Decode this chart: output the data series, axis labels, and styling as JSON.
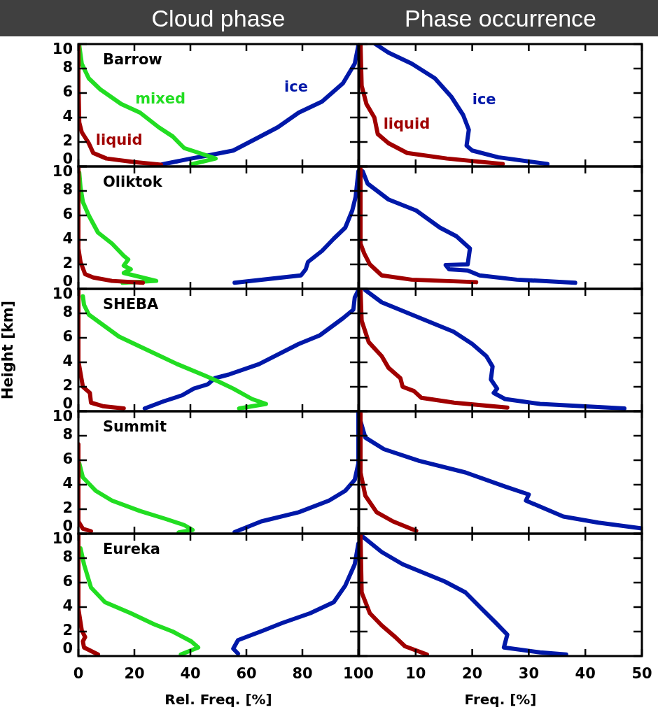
{
  "chart_data": [
    {
      "type": "line",
      "title": "Cloud phase",
      "annotations": [
        "Barrow"
      ],
      "marker": "none",
      "xlim": [
        0,
        100
      ],
      "xticks": [
        0,
        20,
        40,
        60,
        80,
        100
      ],
      "ylim": [
        0,
        10
      ],
      "yticks": [
        0,
        2,
        4,
        6,
        8,
        10
      ],
      "tick_labels": "y",
      "series": [
        {
          "name": "liquid",
          "color": "#a00000",
          "x": [
            29.5,
            20,
            10,
            5.3,
            3.7,
            1.2,
            0.3,
            0.1,
            0
          ],
          "values": [
            0.15,
            0.36,
            0.65,
            1.1,
            1.9,
            2.8,
            3.6,
            6,
            10
          ]
        },
        {
          "name": "mixed",
          "color": "#22dd22",
          "x": [
            40.3,
            49,
            44.5,
            37.8,
            33.7,
            28.7,
            22,
            15.3,
            7.8,
            3.7,
            1.2,
            0.3
          ],
          "values": [
            0.17,
            0.65,
            1.0,
            1.5,
            2.45,
            3.2,
            4.4,
            5.1,
            6.3,
            7.2,
            8.4,
            9.9
          ]
        },
        {
          "name": "ice",
          "color": "#0018a8",
          "x": [
            29.9,
            40.3,
            47,
            55.3,
            63.7,
            71.2,
            78.7,
            87,
            94.5,
            98.7,
            100
          ],
          "values": [
            0.17,
            0.65,
            0.93,
            1.3,
            2.3,
            3.2,
            4.4,
            5.3,
            6.8,
            8.4,
            9.9
          ]
        }
      ]
    },
    {
      "type": "line",
      "title": "Phase occurrence",
      "marker": "none",
      "xlim": [
        0,
        50
      ],
      "xticks": [
        10,
        20,
        30,
        40,
        50
      ],
      "ylim": [
        0,
        10
      ],
      "yticks": [
        0,
        2,
        4,
        6,
        8,
        10
      ],
      "tick_labels": false,
      "series": [
        {
          "name": "liquid",
          "color": "#a00000",
          "x": [
            0.25,
            0.45,
            1.3,
            2.7,
            3.3,
            5.2,
            8.5,
            15.5,
            25.4
          ],
          "values": [
            10,
            6.6,
            5.1,
            4.0,
            2.65,
            1.9,
            1.1,
            0.65,
            0.2
          ]
        },
        {
          "name": "ice",
          "color": "#0018a8",
          "x": [
            2.9,
            5.2,
            9.3,
            13.4,
            16.3,
            18.4,
            19.4,
            19,
            20,
            24.6,
            33.3
          ],
          "values": [
            10,
            9.3,
            8.4,
            7.2,
            5.7,
            4.2,
            3.0,
            1.7,
            1.3,
            0.75,
            0.2
          ]
        }
      ]
    },
    {
      "type": "line",
      "annotations": [
        "Oliktok"
      ],
      "marker": "none",
      "xlim": [
        0,
        100
      ],
      "xticks": [
        0,
        20,
        40,
        60,
        80,
        100
      ],
      "ylim": [
        0,
        10
      ],
      "yticks": [
        0,
        2,
        4,
        6,
        8,
        10
      ],
      "tick_labels": "y",
      "series": [
        {
          "color": "#a00000",
          "x": [
            23,
            12,
            5.3,
            2.4,
            0.75,
            0,
            0
          ],
          "values": [
            0.5,
            0.65,
            0.93,
            1.2,
            2.2,
            3.3,
            10
          ]
        },
        {
          "color": "#22dd22",
          "x": [
            15.8,
            27.8,
            16.2,
            18.7,
            16.2,
            17.8,
            16.2,
            12,
            7,
            3.7,
            1.6,
            0.75,
            0.3
          ],
          "values": [
            0.5,
            0.65,
            1.3,
            1.6,
            1.9,
            2.4,
            2.7,
            3.7,
            4.6,
            6.0,
            7.1,
            8.3,
            9.5
          ]
        },
        {
          "color": "#0018a8",
          "x": [
            55.8,
            79.5,
            81.2,
            82,
            87,
            91.2,
            95.3,
            97.8,
            99,
            100
          ],
          "values": [
            0.5,
            1.1,
            1.6,
            2.2,
            3.1,
            4.1,
            5.0,
            6.4,
            7.5,
            9.6
          ]
        }
      ]
    },
    {
      "type": "line",
      "marker": "none",
      "xlim": [
        0,
        50
      ],
      "xticks": [
        10,
        20,
        30,
        40,
        50
      ],
      "ylim": [
        0,
        10
      ],
      "yticks": [
        0,
        2,
        4,
        6,
        8,
        10
      ],
      "tick_labels": false,
      "series": [
        {
          "color": "#a00000",
          "x": [
            0.25,
            0.25,
            0.9,
            1.9,
            4,
            9.3,
            20.7
          ],
          "values": [
            9.8,
            3.7,
            2.9,
            2.0,
            1.1,
            0.75,
            0.55
          ]
        },
        {
          "color": "#0018a8",
          "x": [
            0.65,
            1.5,
            5.2,
            10.1,
            14.3,
            17.2,
            19.6,
            19.2,
            15.3,
            15.9,
            19.2,
            21.3,
            27.9,
            38.2
          ],
          "values": [
            9.6,
            8.6,
            7.3,
            6.4,
            5.0,
            4.3,
            3.3,
            2.0,
            1.95,
            1.6,
            1.5,
            1.1,
            0.75,
            0.5
          ]
        }
      ]
    },
    {
      "type": "line",
      "ylabel": "Height [km]",
      "annotations": [
        "SHEBA"
      ],
      "marker": "none",
      "xlim": [
        0,
        100
      ],
      "xticks": [
        0,
        20,
        40,
        60,
        80,
        100
      ],
      "ylim": [
        0,
        10
      ],
      "yticks": [
        0,
        2,
        4,
        6,
        8,
        10
      ],
      "tick_labels": "y",
      "series": [
        {
          "color": "#a00000",
          "x": [
            16.2,
            8.7,
            4.5,
            4.1,
            1.6,
            0,
            0
          ],
          "values": [
            0.23,
            0.42,
            0.7,
            1.5,
            2.0,
            4.1,
            10
          ]
        },
        {
          "color": "#22dd22",
          "x": [
            57.4,
            67,
            62,
            55.3,
            50.3,
            45.3,
            35.3,
            22.8,
            14.5,
            3.7,
            2,
            1.6
          ],
          "values": [
            0.23,
            0.6,
            1.0,
            1.85,
            2.4,
            2.9,
            3.85,
            5.2,
            6.1,
            7.9,
            8.7,
            9.4
          ]
        },
        {
          "color": "#0018a8",
          "x": [
            23.7,
            30.3,
            37,
            41.2,
            46.2,
            48.7,
            53.7,
            64.5,
            78.7,
            86.2,
            94.5,
            98.2,
            98.7,
            100
          ],
          "values": [
            0.23,
            0.8,
            1.3,
            1.85,
            2.2,
            2.7,
            3.0,
            3.85,
            5.5,
            6.2,
            7.6,
            8.3,
            9.3,
            9.9
          ]
        }
      ]
    },
    {
      "type": "line",
      "marker": "none",
      "xlim": [
        0,
        50
      ],
      "xticks": [
        10,
        20,
        30,
        40,
        50
      ],
      "ylim": [
        0,
        10
      ],
      "yticks": [
        0,
        2,
        4,
        6,
        8,
        10
      ],
      "tick_labels": false,
      "series": [
        {
          "color": "#a00000",
          "x": [
            0.25,
            0.45,
            1.7,
            4,
            5.2,
            7.3,
            7.7,
            9.7,
            11,
            16.8,
            26.2
          ],
          "values": [
            9.9,
            7.4,
            5.65,
            4.5,
            3.55,
            2.7,
            2.0,
            1.65,
            1.1,
            0.7,
            0.3
          ]
        },
        {
          "color": "#0018a8",
          "x": [
            1.1,
            4,
            11.4,
            16.7,
            20,
            22.5,
            23.6,
            23.3,
            24.4,
            23.8,
            25.8,
            32,
            46.9
          ],
          "values": [
            9.9,
            8.9,
            7.5,
            6.5,
            5.5,
            4.5,
            3.65,
            2.6,
            1.85,
            1.5,
            1.0,
            0.6,
            0.23
          ]
        }
      ]
    },
    {
      "type": "line",
      "annotations": [
        "Summit"
      ],
      "marker": "none",
      "xlim": [
        0,
        100
      ],
      "xticks": [
        0,
        20,
        40,
        60,
        80,
        100
      ],
      "ylim": [
        0,
        10
      ],
      "yticks": [
        0,
        2,
        4,
        6,
        8,
        10
      ],
      "tick_labels": "y",
      "series": [
        {
          "color": "#a00000",
          "x": [
            4.5,
            1.6,
            0,
            0
          ],
          "values": [
            0.2,
            0.4,
            1.0,
            7.3
          ]
        },
        {
          "color": "#22dd22",
          "x": [
            35.8,
            40.8,
            37.8,
            31.2,
            22,
            12,
            6.2,
            1.6,
            0.3
          ],
          "values": [
            0.1,
            0.3,
            0.7,
            1.2,
            1.85,
            2.7,
            3.5,
            4.6,
            5.75
          ]
        },
        {
          "color": "#0018a8",
          "x": [
            55.8,
            65.3,
            78.7,
            89.5,
            95.3,
            98.7,
            100,
            100
          ],
          "values": [
            0.13,
            1.0,
            1.75,
            2.7,
            3.5,
            4.4,
            5.75,
            10
          ]
        }
      ]
    },
    {
      "type": "line",
      "marker": "none",
      "xlim": [
        0,
        50
      ],
      "xticks": [
        10,
        20,
        30,
        40,
        50
      ],
      "ylim": [
        0,
        10
      ],
      "yticks": [
        0,
        2,
        4,
        6,
        8,
        10
      ],
      "tick_labels": false,
      "series": [
        {
          "color": "#a00000",
          "x": [
            0.25,
            0.25,
            1.1,
            3.1,
            6,
            10.1
          ],
          "values": [
            9.85,
            5.0,
            3.1,
            1.75,
            1.0,
            0.23
          ]
        },
        {
          "color": "#0018a8",
          "x": [
            0.25,
            1.1,
            4.4,
            10.6,
            18.8,
            25.8,
            30,
            29.5,
            36.1,
            42.3,
            50
          ],
          "values": [
            9.2,
            7.85,
            6.9,
            5.95,
            5.0,
            3.85,
            3.2,
            2.7,
            1.4,
            0.9,
            0.42
          ]
        }
      ]
    },
    {
      "type": "line",
      "xlabel": "Rel. Freq. [%]",
      "annotations": [
        "Eureka"
      ],
      "marker": "none",
      "xlim": [
        0,
        100
      ],
      "xticks": [
        0,
        20,
        40,
        60,
        80,
        100
      ],
      "ylim": [
        0,
        10
      ],
      "yticks": [
        0,
        2,
        4,
        6,
        8,
        10
      ],
      "series": [
        {
          "color": "#a00000",
          "x": [
            7,
            2,
            1.6,
            2.4,
            1.2,
            0,
            0
          ],
          "values": [
            0.13,
            0.7,
            1.2,
            1.55,
            2.1,
            3.85,
            10
          ]
        },
        {
          "color": "#22dd22",
          "x": [
            36.6,
            42.8,
            40.3,
            33.7,
            27,
            18.7,
            9.5,
            4.5,
            2,
            0.75
          ],
          "values": [
            0.13,
            0.7,
            1.2,
            2.0,
            2.6,
            3.5,
            4.4,
            5.6,
            7.5,
            8.8
          ]
        },
        {
          "color": "#0018a8",
          "x": [
            57,
            55.3,
            57,
            66.2,
            72.8,
            82.8,
            91.2,
            95.3,
            98.7,
            100
          ],
          "values": [
            0.2,
            0.6,
            1.3,
            2.1,
            2.7,
            3.5,
            4.4,
            5.75,
            7.5,
            9.2
          ]
        }
      ]
    },
    {
      "type": "line",
      "xlabel": "Freq. [%]",
      "marker": "none",
      "xlim": [
        0,
        50
      ],
      "xticks": [
        10,
        20,
        30,
        40,
        50
      ],
      "ylim": [
        0,
        10
      ],
      "yticks": [
        0,
        2,
        4,
        6,
        8,
        10
      ],
      "tick_labels": "x",
      "series": [
        {
          "color": "#a00000",
          "x": [
            0.25,
            0.45,
            1.9,
            4,
            6.4,
            8.1,
            12
          ],
          "values": [
            9.85,
            5.2,
            3.5,
            2.5,
            1.55,
            0.8,
            0.13
          ]
        },
        {
          "color": "#0018a8",
          "x": [
            0.65,
            4,
            7.7,
            15.1,
            18.8,
            21.7,
            24.2,
            26.2,
            25.6,
            32,
            36.6
          ],
          "values": [
            9.75,
            8.5,
            7.5,
            6.1,
            5.2,
            3.85,
            2.7,
            1.75,
            0.7,
            0.3,
            0.13
          ]
        }
      ]
    }
  ]
}
